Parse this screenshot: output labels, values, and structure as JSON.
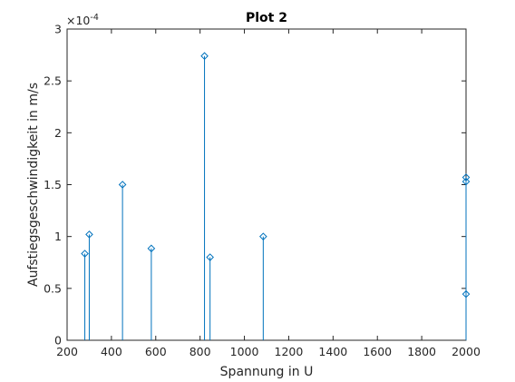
{
  "chart_data": {
    "type": "stem",
    "title": "Plot 2",
    "xlabel": "Spannung in U",
    "ylabel": "Aufstiegsgeschwindigkeit in m/s",
    "y_exponent_label": "×10",
    "y_exponent_value": "-4",
    "xlim": [
      200,
      2000
    ],
    "ylim": [
      0,
      0.0003
    ],
    "x_ticks": [
      200,
      400,
      600,
      800,
      1000,
      1200,
      1400,
      1600,
      1800,
      2000
    ],
    "x_tick_labels": [
      "200",
      "400",
      "600",
      "800",
      "1000",
      "1200",
      "1400",
      "1600",
      "1800",
      "2000"
    ],
    "y_ticks": [
      0,
      5e-05,
      0.0001,
      0.00015,
      0.0002,
      0.00025,
      0.0003
    ],
    "y_tick_labels": [
      "0",
      "0.5",
      "1",
      "1.5",
      "2",
      "2.5",
      "3"
    ],
    "grid": false,
    "series": [
      {
        "color": "#0072bd",
        "marker": "diamond",
        "points": [
          {
            "x": 280,
            "y": 8.35e-05
          },
          {
            "x": 300,
            "y": 0.000102
          },
          {
            "x": 450,
            "y": 0.00015
          },
          {
            "x": 580,
            "y": 8.85e-05
          },
          {
            "x": 820,
            "y": 0.000274
          },
          {
            "x": 845,
            "y": 8e-05
          },
          {
            "x": 1085,
            "y": 0.0001
          },
          {
            "x": 2000,
            "y": 0.000157
          },
          {
            "x": 2000,
            "y": 0.000153
          },
          {
            "x": 2000,
            "y": 4.45e-05
          }
        ]
      }
    ]
  }
}
